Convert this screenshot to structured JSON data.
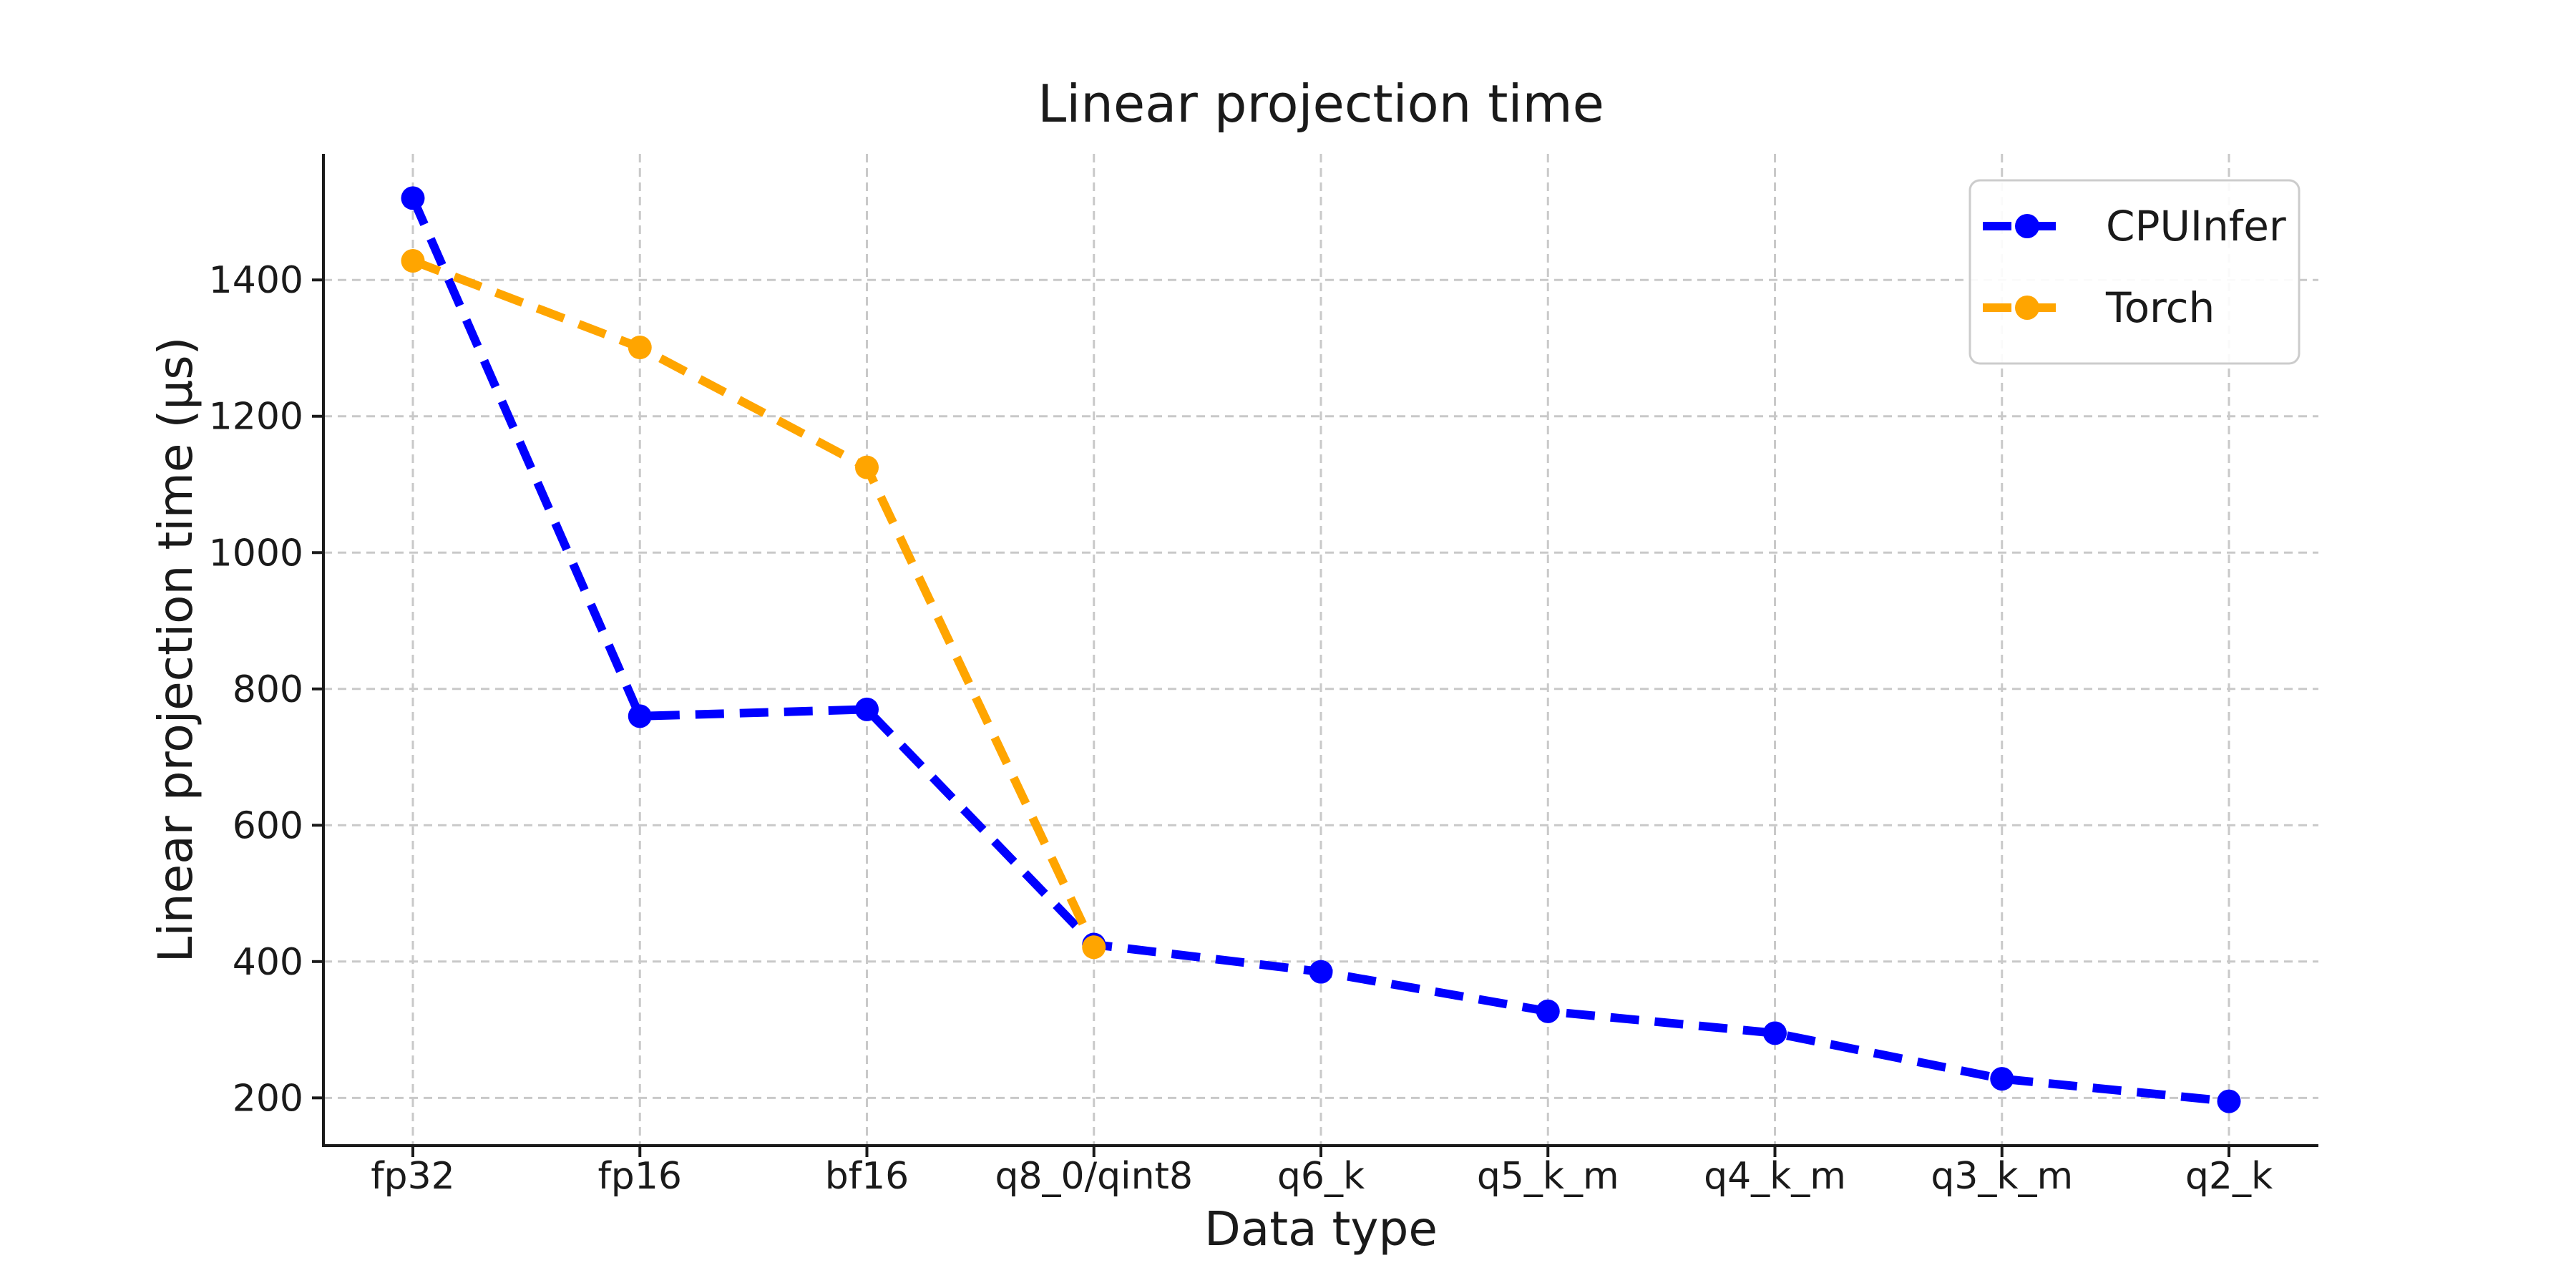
{
  "chart_data": {
    "type": "line",
    "title": "Linear projection time",
    "xlabel": "Data type",
    "ylabel": "Linear projection time (µs)",
    "categories": [
      "fp32",
      "fp16",
      "bf16",
      "q8_0/qint8",
      "q6_k",
      "q5_k_m",
      "q4_k_m",
      "q3_k_m",
      "q2_k"
    ],
    "series": [
      {
        "name": "CPUInfer",
        "color": "#0000ff",
        "linestyle": "dashed",
        "marker": "circle",
        "values": [
          1520,
          760,
          770,
          425,
          385,
          327,
          295,
          228,
          195
        ]
      },
      {
        "name": "Torch",
        "color": "#ffa500",
        "linestyle": "dashed",
        "marker": "circle",
        "values": [
          1428,
          1301,
          1125,
          421
        ]
      }
    ],
    "yticks": [
      200,
      400,
      600,
      800,
      1000,
      1200,
      1400
    ],
    "ylim": [
      130,
      1585
    ],
    "grid": {
      "show": true,
      "style": "dashed",
      "color": "#c9c9c9"
    },
    "legend": {
      "position": "upper right",
      "entries": [
        "CPUInfer",
        "Torch"
      ]
    },
    "axis_color": "#1a1a1a",
    "text_color": "#1a1a1a",
    "background": "#ffffff"
  }
}
